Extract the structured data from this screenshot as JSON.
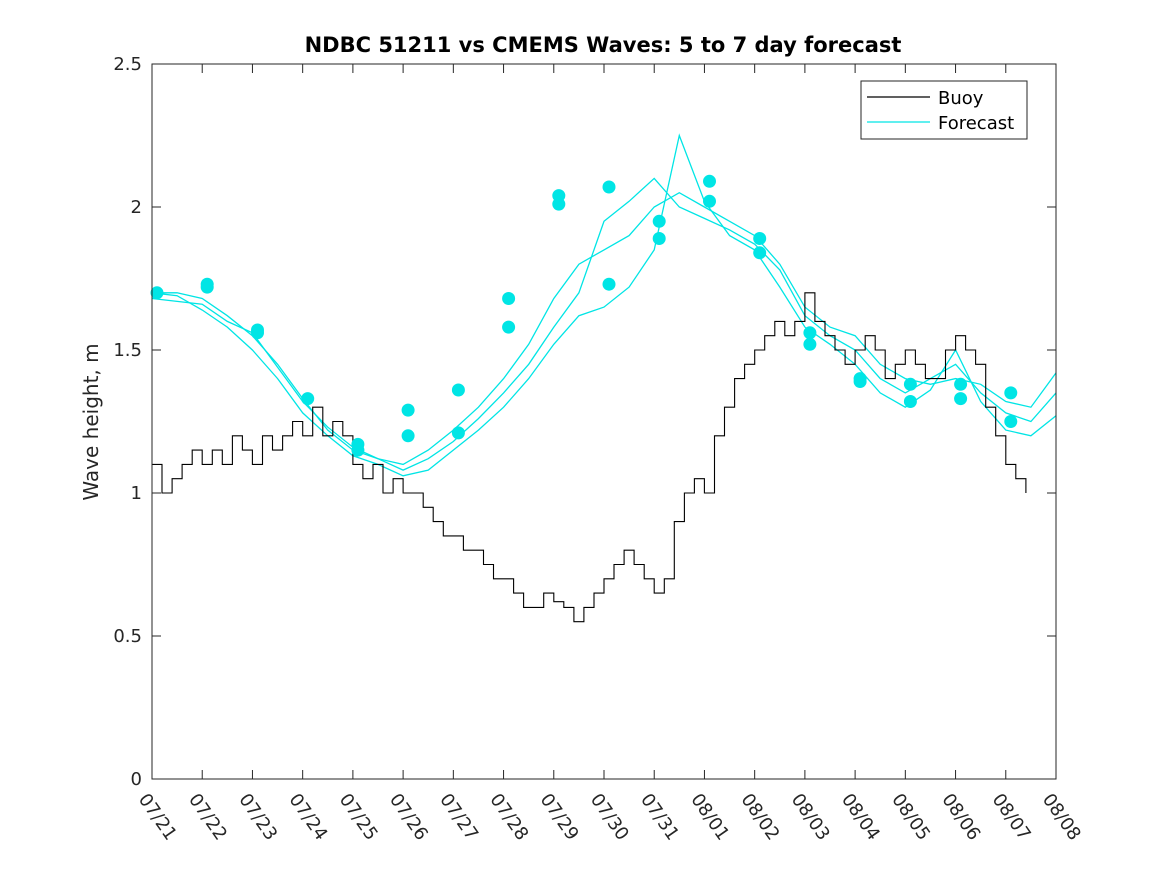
{
  "chart_data": {
    "type": "line",
    "title": "NDBC 51211 vs CMEMS Waves: 5 to 7 day forecast",
    "xlabel": "",
    "ylabel": "Wave height, m",
    "xlim": [
      0,
      18
    ],
    "ylim": [
      0,
      2.5
    ],
    "x_tick_labels": [
      "07/21",
      "07/22",
      "07/23",
      "07/24",
      "07/25",
      "07/26",
      "07/27",
      "07/28",
      "07/29",
      "07/30",
      "07/31",
      "08/01",
      "08/02",
      "08/03",
      "08/04",
      "08/05",
      "08/06",
      "08/07",
      "08/08"
    ],
    "y_ticks": [
      0,
      0.5,
      1,
      1.5,
      2,
      2.5
    ],
    "y_tick_labels": [
      "0",
      "0.5",
      "1",
      "1.5",
      "2",
      "2.5"
    ],
    "legend": {
      "position": "top-right",
      "entries": [
        "Buoy",
        "Forecast"
      ]
    },
    "colors": {
      "buoy": "#000000",
      "forecast": "#00e5e5"
    },
    "grid": false,
    "series": [
      {
        "name": "Buoy",
        "x": [
          0,
          0.2,
          0.4,
          0.6,
          0.8,
          1.0,
          1.2,
          1.4,
          1.6,
          1.8,
          2.0,
          2.2,
          2.4,
          2.6,
          2.8,
          3.0,
          3.2,
          3.4,
          3.6,
          3.8,
          4.0,
          4.2,
          4.4,
          4.6,
          4.8,
          5.0,
          5.2,
          5.4,
          5.6,
          5.8,
          6.0,
          6.2,
          6.4,
          6.6,
          6.8,
          7.0,
          7.2,
          7.4,
          7.6,
          7.8,
          8.0,
          8.2,
          8.4,
          8.6,
          8.8,
          9.0,
          9.2,
          9.4,
          9.6,
          9.8,
          10.0,
          10.2,
          10.4,
          10.6,
          10.8,
          11.0,
          11.2,
          11.4,
          11.6,
          11.8,
          12.0,
          12.2,
          12.4,
          12.6,
          12.8,
          13.0,
          13.2,
          13.4,
          13.6,
          13.8,
          14.0,
          14.2,
          14.4,
          14.6,
          14.8,
          15.0,
          15.2,
          15.4,
          15.6,
          15.8,
          16.0,
          16.2,
          16.4,
          16.6,
          16.8,
          17.0,
          17.2,
          17.4
        ],
        "y": [
          1.1,
          1.0,
          1.05,
          1.1,
          1.15,
          1.1,
          1.15,
          1.1,
          1.2,
          1.15,
          1.1,
          1.2,
          1.15,
          1.2,
          1.25,
          1.2,
          1.3,
          1.2,
          1.25,
          1.2,
          1.1,
          1.05,
          1.1,
          1.0,
          1.05,
          1.0,
          1.0,
          0.95,
          0.9,
          0.85,
          0.85,
          0.8,
          0.8,
          0.75,
          0.7,
          0.7,
          0.65,
          0.6,
          0.6,
          0.65,
          0.62,
          0.6,
          0.55,
          0.6,
          0.65,
          0.7,
          0.75,
          0.8,
          0.75,
          0.7,
          0.65,
          0.7,
          0.9,
          1.0,
          1.05,
          1.0,
          1.2,
          1.3,
          1.4,
          1.45,
          1.5,
          1.55,
          1.6,
          1.55,
          1.6,
          1.7,
          1.6,
          1.55,
          1.5,
          1.45,
          1.5,
          1.55,
          1.5,
          1.4,
          1.45,
          1.5,
          1.45,
          1.4,
          1.4,
          1.5,
          1.55,
          1.5,
          1.45,
          1.3,
          1.2,
          1.1,
          1.05,
          1.0
        ]
      },
      {
        "name": "Forecast",
        "x": [
          0,
          0.5,
          1.0,
          1.5,
          2.0,
          2.5,
          3.0,
          3.5,
          4.0,
          4.5,
          5.0,
          5.5,
          6.0,
          6.5,
          7.0,
          7.5,
          8.0,
          8.5,
          9.0,
          9.5,
          10.0,
          10.5,
          11.0,
          11.5,
          12.0,
          12.5,
          13.0,
          13.5,
          14.0,
          14.5,
          15.0,
          15.5,
          16.0,
          16.5,
          17.0,
          17.5,
          18.0
        ],
        "y": [
          1.7,
          1.7,
          1.68,
          1.62,
          1.55,
          1.45,
          1.33,
          1.22,
          1.15,
          1.12,
          1.1,
          1.15,
          1.22,
          1.3,
          1.4,
          1.52,
          1.68,
          1.8,
          1.85,
          1.9,
          2.0,
          2.05,
          2.0,
          1.95,
          1.9,
          1.8,
          1.65,
          1.58,
          1.55,
          1.45,
          1.4,
          1.38,
          1.4,
          1.38,
          1.32,
          1.3,
          1.42
        ]
      },
      {
        "name": "Forecast",
        "x": [
          0,
          0.5,
          1.0,
          1.5,
          2.0,
          2.5,
          3.0,
          3.5,
          4.0,
          4.5,
          5.0,
          5.5,
          6.0,
          6.5,
          7.0,
          7.5,
          8.0,
          8.5,
          9.0,
          9.5,
          10.0,
          10.5,
          11.0,
          11.5,
          12.0,
          12.5,
          13.0,
          13.5,
          14.0,
          14.5,
          15.0,
          15.5,
          16.0,
          16.5,
          17.0,
          17.5,
          18.0
        ],
        "y": [
          1.68,
          1.67,
          1.66,
          1.6,
          1.56,
          1.44,
          1.32,
          1.23,
          1.16,
          1.12,
          1.08,
          1.12,
          1.18,
          1.26,
          1.35,
          1.45,
          1.58,
          1.7,
          1.95,
          2.02,
          2.1,
          2.0,
          1.96,
          1.92,
          1.87,
          1.78,
          1.62,
          1.55,
          1.5,
          1.4,
          1.35,
          1.4,
          1.45,
          1.35,
          1.28,
          1.25,
          1.35
        ]
      },
      {
        "name": "Forecast",
        "x": [
          0,
          0.5,
          1.0,
          1.5,
          2.0,
          2.5,
          3.0,
          3.5,
          4.0,
          4.5,
          5.0,
          5.5,
          6.0,
          6.5,
          7.0,
          7.5,
          8.0,
          8.5,
          9.0,
          9.5,
          10.0,
          10.5,
          11.0,
          11.5,
          12.0,
          12.5,
          13.0,
          13.5,
          14.0,
          14.5,
          15.0,
          15.5,
          16.0,
          16.5,
          17.0,
          17.5,
          18.0
        ],
        "y": [
          1.7,
          1.69,
          1.64,
          1.58,
          1.5,
          1.4,
          1.28,
          1.2,
          1.13,
          1.1,
          1.06,
          1.08,
          1.15,
          1.22,
          1.3,
          1.4,
          1.52,
          1.62,
          1.65,
          1.72,
          1.85,
          2.25,
          2.02,
          1.9,
          1.85,
          1.72,
          1.58,
          1.52,
          1.45,
          1.35,
          1.3,
          1.36,
          1.5,
          1.32,
          1.22,
          1.2,
          1.27
        ]
      }
    ],
    "markers": {
      "x": [
        0.1,
        1.1,
        1.1,
        2.1,
        2.1,
        3.1,
        4.1,
        4.1,
        5.1,
        5.1,
        6.1,
        6.1,
        7.1,
        7.1,
        8.1,
        8.1,
        9.1,
        9.1,
        10.1,
        10.1,
        11.1,
        11.1,
        12.1,
        12.1,
        13.1,
        13.1,
        14.1,
        14.1,
        15.1,
        15.1,
        16.1,
        16.1,
        17.1,
        17.1
      ],
      "y": [
        1.7,
        1.73,
        1.72,
        1.57,
        1.56,
        1.33,
        1.17,
        1.15,
        1.29,
        1.2,
        1.36,
        1.21,
        1.68,
        1.58,
        2.04,
        2.01,
        2.07,
        1.73,
        1.95,
        1.89,
        2.09,
        2.02,
        1.89,
        1.84,
        1.56,
        1.52,
        1.4,
        1.39,
        1.38,
        1.32,
        1.38,
        1.33,
        1.35,
        1.25
      ]
    }
  }
}
